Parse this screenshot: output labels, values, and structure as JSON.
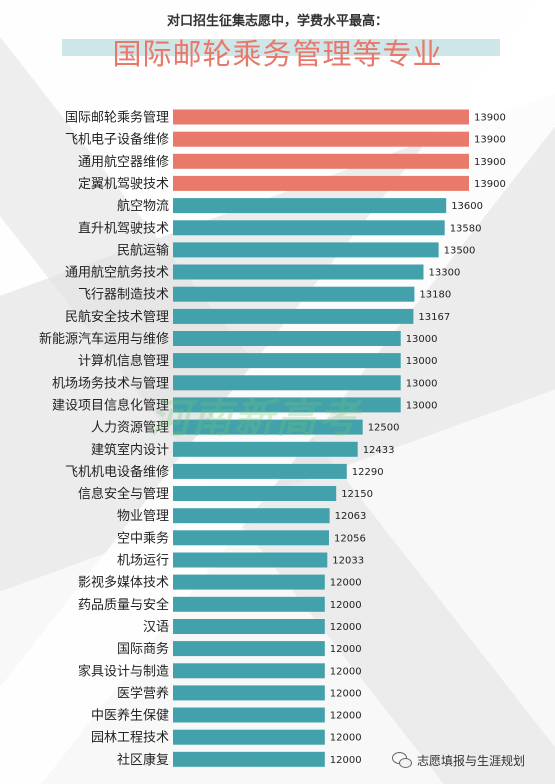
{
  "header": {
    "subtitle": "对口招生征集志愿中，学费水平最高：",
    "title": "国际邮轮乘务管理等专业"
  },
  "watermark": "河南新高考",
  "footer": {
    "account": "志愿填报与生涯规划",
    "icon": "wechat-icon"
  },
  "colors": {
    "highlight": "#e8796b",
    "normal": "#43a1ac"
  },
  "chart_data": {
    "type": "bar",
    "orientation": "horizontal",
    "categories": [
      "国际邮轮乘务管理",
      "飞机电子设备维修",
      "通用航空器维修",
      "定翼机驾驶技术",
      "航空物流",
      "直升机驾驶技术",
      "民航运输",
      "通用航空航务技术",
      "飞行器制造技术",
      "民航安全技术管理",
      "新能源汽车运用与维修",
      "计算机信息管理",
      "机场场务技术与管理",
      "建设项目信息化管理",
      "人力资源管理",
      "建筑室内设计",
      "飞机机电设备维修",
      "信息安全与管理",
      "物业管理",
      "空中乘务",
      "机场运行",
      "影视多媒体技术",
      "药品质量与安全",
      "汉语",
      "国际商务",
      "家具设计与制造",
      "医学营养",
      "中医养生保健",
      "园林工程技术",
      "社区康复"
    ],
    "values": [
      13900,
      13900,
      13900,
      13900,
      13600,
      13580,
      13500,
      13300,
      13180,
      13167,
      13000,
      13000,
      13000,
      13000,
      12500,
      12433,
      12290,
      12150,
      12063,
      12056,
      12033,
      12000,
      12000,
      12000,
      12000,
      12000,
      12000,
      12000,
      12000,
      12000
    ],
    "highlight_count": 4,
    "axis_min": 10000,
    "grid": false,
    "legend": "none"
  }
}
